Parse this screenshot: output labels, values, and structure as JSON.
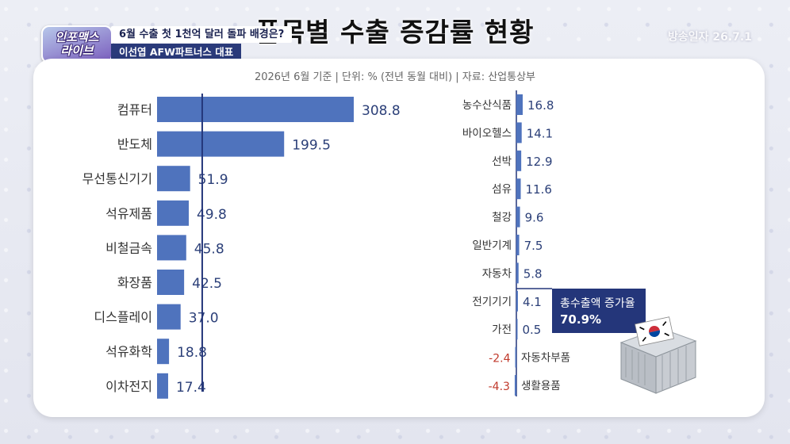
{
  "header": {
    "title": "품목별 수출 증감률 현황",
    "logo_line1": "인포맥스",
    "logo_line2": "라이브",
    "topic": "6월 수출 첫 1천억 달러 돌파 배경은?",
    "guest": "이선엽 AFW파트너스 대표",
    "stamp": "방송일자 26.7.1"
  },
  "source_note": "2026년 6월 기준 | 단위: % (전년 동월 대비) | 자료: 산업통상부",
  "callout": {
    "label": "총수출액 증가율",
    "value": "70.9%"
  },
  "colors": {
    "bar": "#4f73bd",
    "negative_text": "#c0392b",
    "text": "#333333",
    "axis": "#24367a",
    "callout_bg": "#24367a"
  },
  "chart_data": [
    {
      "type": "bar",
      "orientation": "horizontal",
      "categories": [
        "컴퓨터",
        "반도체",
        "무선통신기기",
        "석유제품",
        "비철금속",
        "화장품",
        "디스플레이",
        "석유화학",
        "이차전지"
      ],
      "values": [
        308.8,
        199.5,
        51.9,
        49.8,
        45.8,
        42.5,
        37.0,
        18.8,
        17.4
      ],
      "labels": [
        "308.8",
        "199.5",
        "51.9",
        "49.8",
        "45.8",
        "42.5",
        "37.0",
        "18.8",
        "17.4"
      ],
      "reference_line": 70.9
    },
    {
      "type": "bar",
      "orientation": "horizontal",
      "categories": [
        "농수산식품",
        "바이오헬스",
        "선박",
        "섬유",
        "철강",
        "일반기계",
        "자동차",
        "전기기기",
        "가전",
        "자동차부품",
        "생활용품"
      ],
      "values": [
        16.8,
        14.1,
        12.9,
        11.6,
        9.6,
        7.5,
        5.8,
        4.1,
        0.5,
        -2.4,
        -4.3
      ],
      "labels": [
        "16.8",
        "14.1",
        "12.9",
        "11.6",
        "9.6",
        "7.5",
        "5.8",
        "4.1",
        "0.5",
        "-2.4",
        "-4.3"
      ]
    }
  ]
}
